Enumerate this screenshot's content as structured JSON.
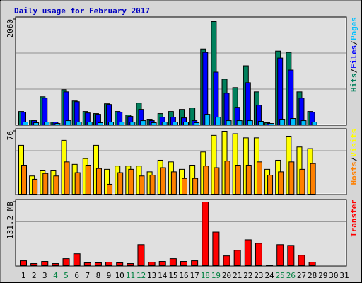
{
  "title": "Daily usage for February 2017",
  "chart_data": {
    "type": "bar",
    "categories": [
      "1",
      "2",
      "3",
      "4",
      "5",
      "6",
      "7",
      "8",
      "9",
      "10",
      "11",
      "12",
      "13",
      "14",
      "15",
      "16",
      "17",
      "18",
      "19",
      "20",
      "21",
      "22",
      "23",
      "24",
      "25",
      "26",
      "27",
      "28",
      "29",
      "30",
      "31"
    ],
    "category_colors": [
      "#000000",
      "#000000",
      "#000000",
      "#008040",
      "#008040",
      "#000000",
      "#000000",
      "#000000",
      "#000000",
      "#000000",
      "#008040",
      "#008040",
      "#000000",
      "#000000",
      "#000000",
      "#000000",
      "#000000",
      "#008040",
      "#008040",
      "#000000",
      "#000000",
      "#000000",
      "#000000",
      "#000000",
      "#008040",
      "#008040",
      "#000000",
      "#000000",
      "#000000",
      "#000000",
      "#000000"
    ],
    "legend_separator": "/",
    "panels": [
      {
        "ylim": [
          0,
          2060
        ],
        "yticks": [
          2060
        ],
        "series": [
          {
            "name": "Hits",
            "color": "#00805c",
            "values": [
              261,
              96,
              549,
              55,
              687,
              467,
              261,
              220,
              412,
              261,
              192,
              426,
              110,
              220,
              261,
              302,
              330,
              1483,
              2019,
              893,
              728,
              1154,
              645,
              41,
              1442,
              1415,
              645,
              261,
              0,
              0,
              0
            ]
          },
          {
            "name": "Files",
            "color": "#0000ff",
            "values": [
              247,
              82,
              522,
              55,
              645,
              453,
              233,
              206,
              398,
              247,
              165,
              302,
              82,
              151,
              151,
              137,
              82,
              1415,
              1030,
              618,
              343,
              824,
              385,
              27,
              1305,
              1071,
              522,
              247,
              0,
              0,
              0
            ]
          },
          {
            "name": "Pages",
            "color": "#00c0ff",
            "values": [
              55,
              41,
              55,
              27,
              82,
              55,
              55,
              41,
              55,
              55,
              55,
              82,
              41,
              55,
              55,
              55,
              41,
              206,
              151,
              82,
              82,
              82,
              69,
              27,
              110,
              124,
              82,
              55,
              0,
              0,
              0
            ]
          }
        ]
      },
      {
        "ylim": [
          0,
          76
        ],
        "yticks": [
          76
        ],
        "legend_reversed": true,
        "series": [
          {
            "name": "Visits",
            "color": "#ffff00",
            "values": [
              59,
              22,
              29,
              29,
              65,
              36,
              43,
              59,
              30,
              34,
              34,
              34,
              27,
              41,
              39,
              30,
              35,
              51,
              71,
              76,
              73,
              68,
              68,
              30,
              41,
              70,
              57,
              55,
              0,
              0,
              0
            ]
          },
          {
            "name": "Hosts",
            "color": "#ff8000",
            "values": [
              35,
              18,
              25,
              22,
              39,
              26,
              35,
              31,
              12,
              26,
              30,
              22,
              23,
              32,
              27,
              19,
              19,
              34,
              32,
              40,
              35,
              35,
              39,
              23,
              27,
              39,
              30,
              37,
              0,
              0,
              0
            ]
          }
        ]
      },
      {
        "ylim": [
          0,
          131.2
        ],
        "yticks": [
          {
            "value": 131.2,
            "label": "131.2 MB"
          }
        ],
        "series": [
          {
            "name": "Transfer",
            "color": "#ff0000",
            "values": [
              10.1,
              4.3,
              8.7,
              4.3,
              14.4,
              24.5,
              5.8,
              5.8,
              7.2,
              5.8,
              4.3,
              43.3,
              7.2,
              8.7,
              14.4,
              8.7,
              10.1,
              131.2,
              69.2,
              20.2,
              31.7,
              53.3,
              46.1,
              1.4,
              43.3,
              41.8,
              21.6,
              7.2,
              0,
              0,
              0
            ]
          }
        ]
      }
    ]
  }
}
